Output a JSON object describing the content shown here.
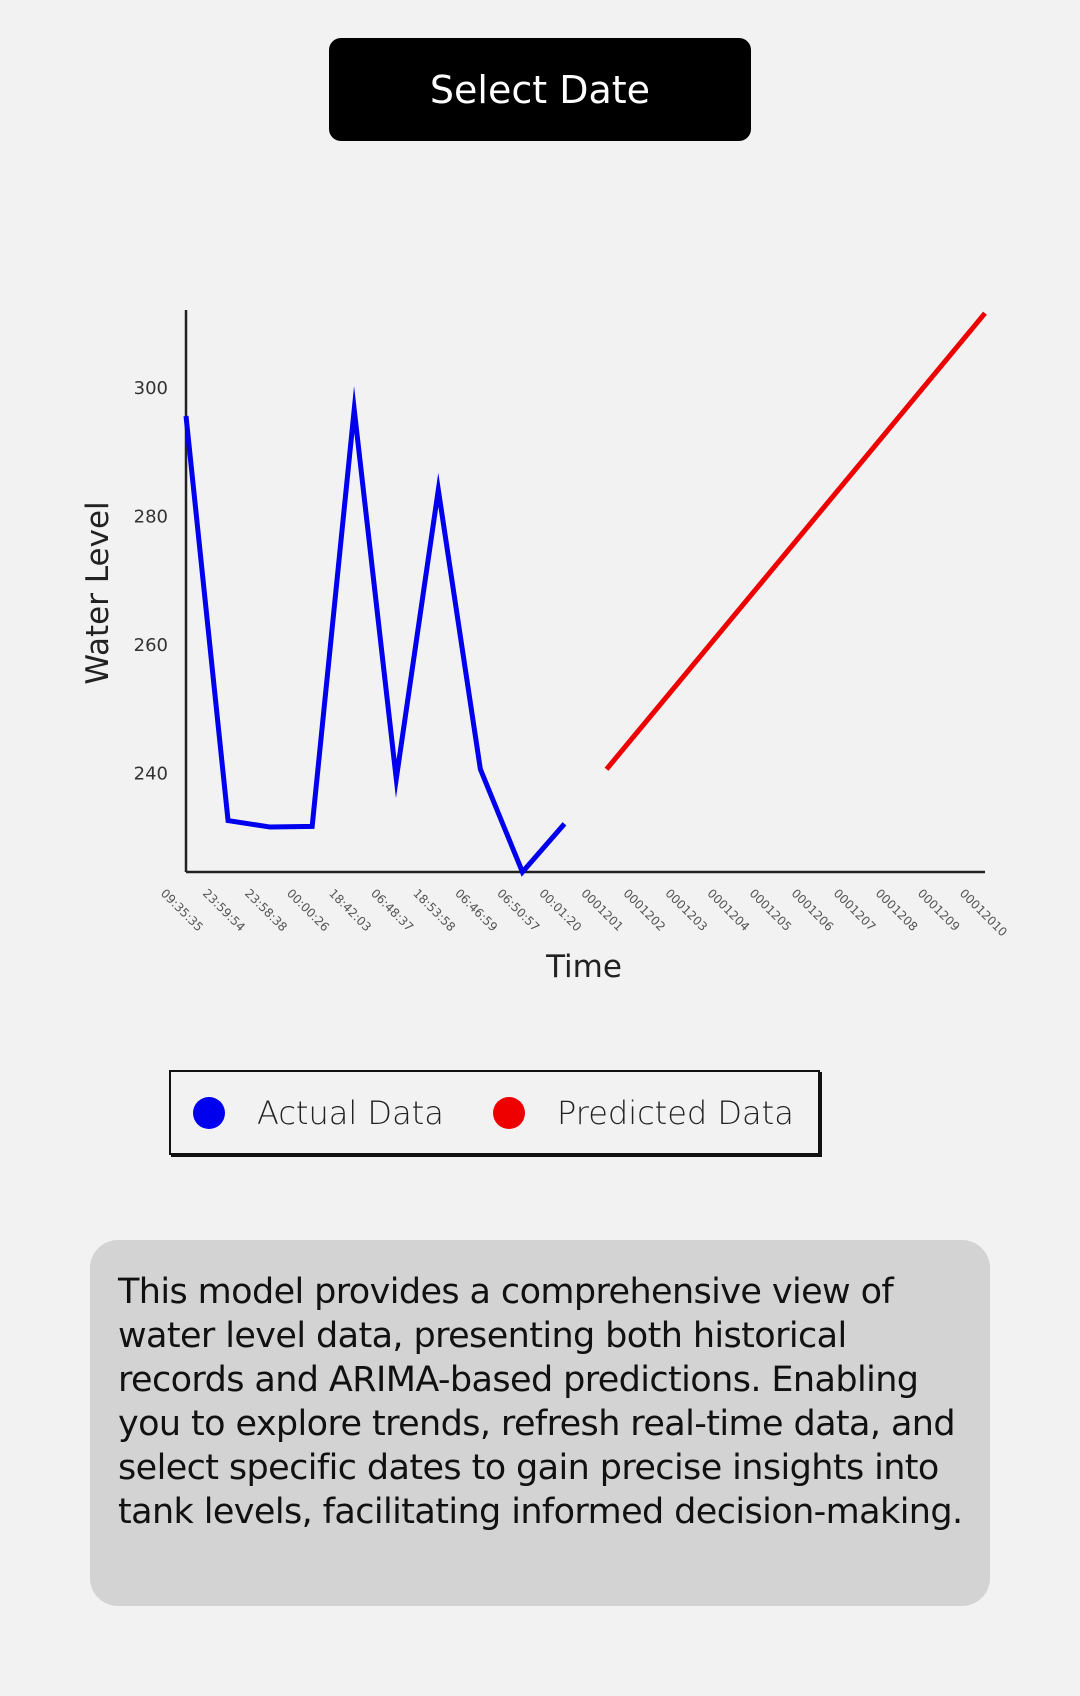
{
  "select_date_button": {
    "label": "Select Date"
  },
  "chart_data": {
    "type": "line",
    "xlabel": "Time",
    "ylabel": "Water Level",
    "ylim": [
      224.5,
      312
    ],
    "yticks": [
      240,
      260,
      280,
      300
    ],
    "x_tick_labels": [
      "09:35:35",
      "23:59:54",
      "23:58:38",
      "00:00:26",
      "18:42:03",
      "06:48:37",
      "18:53:58",
      "06:46:59",
      "06:50:57",
      "00:01:20",
      "0001201",
      "0001202",
      "0001203",
      "0001204",
      "0001205",
      "0001206",
      "0001207",
      "0001208",
      "0001209",
      "00012010"
    ],
    "grid": false,
    "series": [
      {
        "name": "Actual Data",
        "color": "#0000ee",
        "x_index": [
          0,
          1,
          2,
          3,
          4,
          5,
          6,
          7,
          8,
          9
        ],
        "values": [
          295.5,
          232.5,
          231.5,
          231.6,
          296.5,
          239.0,
          284.0,
          240.5,
          224.5,
          232.0
        ]
      },
      {
        "name": "Predicted Data",
        "color": "#ee0000",
        "x_index": [
          10,
          19
        ],
        "values": [
          240.5,
          311.5
        ]
      }
    ]
  },
  "legend": {
    "items": [
      {
        "label": "Actual Data",
        "color": "#0000ee"
      },
      {
        "label": "Predicted Data",
        "color": "#ee0000"
      }
    ]
  },
  "description": {
    "text": "This model provides a comprehensive view of water level data, presenting both historical records and ARIMA-based predictions. Enabling you to explore trends, refresh real-time data, and select specific dates to gain precise insights into tank levels, facilitating informed decision-making."
  }
}
